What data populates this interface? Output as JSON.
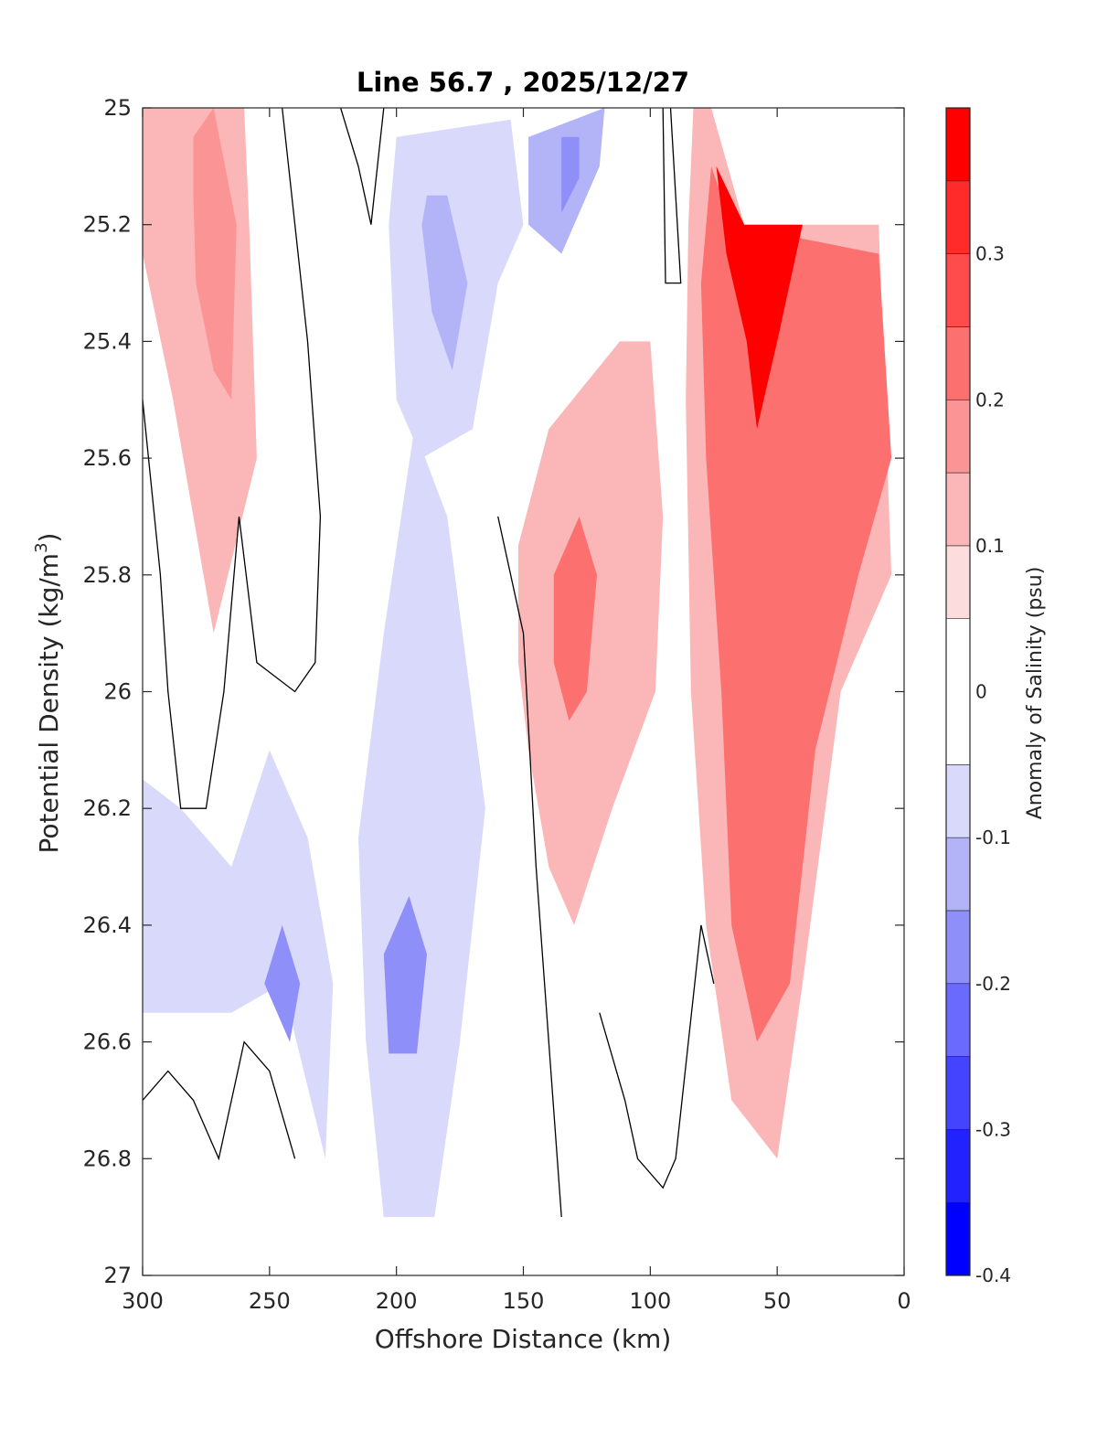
{
  "chart_data": {
    "type": "contourf",
    "title": "Line 56.7 , 2025/12/27",
    "xlabel": "Offshore Distance (km)",
    "ylabel_main": "Potential Density (kg/m",
    "ylabel_sup": "3",
    "ylabel_close": ")",
    "xlim": [
      300,
      0
    ],
    "ylim": [
      25,
      27
    ],
    "x_ticks": [
      300,
      250,
      200,
      150,
      100,
      50,
      0
    ],
    "x_tick_labels": [
      "300",
      "250",
      "200",
      "150",
      "100",
      "50",
      "0"
    ],
    "y_ticks": [
      25,
      25.2,
      25.4,
      25.6,
      25.8,
      26,
      26.2,
      26.4,
      26.6,
      26.8,
      27
    ],
    "y_tick_labels": [
      "25",
      "25.2",
      "25.4",
      "25.6",
      "25.8",
      "26",
      "26.2",
      "26.4",
      "26.6",
      "26.8",
      "27"
    ],
    "colorbar": {
      "label": "Anomaly of Salinity (psu)",
      "range": [
        -0.4,
        0.4
      ],
      "level_edges": [
        -0.4,
        -0.35,
        -0.3,
        -0.25,
        -0.2,
        -0.15,
        -0.1,
        -0.05,
        0.05,
        0.1,
        0.15,
        0.2,
        0.25,
        0.3,
        0.35,
        0.4
      ],
      "level_colors": [
        "#0000ff",
        "#2222ff",
        "#4444ff",
        "#6a6aff",
        "#8f8ffa",
        "#b3b3f8",
        "#d9d9fb",
        "#ffffff",
        "#fcdcdc",
        "#fbb7b7",
        "#fb9494",
        "#fd7070",
        "#fe4c4c",
        "#ff2a2a",
        "#ff0000"
      ],
      "tick_values": [
        0.3,
        0.2,
        0.1,
        0,
        -0.1,
        -0.2,
        -0.3,
        -0.4
      ],
      "tick_labels": [
        "0.3",
        "0.2",
        "0.1",
        "0",
        "-0.1",
        "-0.2",
        "-0.3",
        "-0.4"
      ]
    },
    "regions": [
      {
        "name": "positive-core-275km",
        "level": 0.1,
        "points": [
          [
            300,
            25
          ],
          [
            260,
            25
          ],
          [
            258,
            25.2
          ],
          [
            255,
            25.6
          ],
          [
            272,
            25.9
          ],
          [
            288,
            25.5
          ],
          [
            300,
            25.25
          ]
        ]
      },
      {
        "name": "positive-core-275km-inner",
        "level": 0.15,
        "points": [
          [
            280,
            25.05
          ],
          [
            272,
            25.0
          ],
          [
            263,
            25.2
          ],
          [
            265,
            25.5
          ],
          [
            272,
            25.45
          ],
          [
            279,
            25.3
          ],
          [
            280,
            25.15
          ]
        ]
      },
      {
        "name": "negative-upper-190km",
        "level": -0.1,
        "points": [
          [
            200,
            25.05
          ],
          [
            155,
            25.02
          ],
          [
            150,
            25.2
          ],
          [
            160,
            25.3
          ],
          [
            170,
            25.55
          ],
          [
            190,
            25.6
          ],
          [
            200,
            25.5
          ],
          [
            203,
            25.2
          ]
        ]
      },
      {
        "name": "negative-upper-190km-inner",
        "level": -0.15,
        "points": [
          [
            188,
            25.15
          ],
          [
            180,
            25.15
          ],
          [
            172,
            25.3
          ],
          [
            178,
            25.45
          ],
          [
            186,
            25.35
          ],
          [
            190,
            25.2
          ]
        ]
      },
      {
        "name": "negative-upper-135km",
        "level": -0.15,
        "points": [
          [
            148,
            25.05
          ],
          [
            118,
            25.0
          ],
          [
            120,
            25.1
          ],
          [
            135,
            25.25
          ],
          [
            148,
            25.2
          ]
        ]
      },
      {
        "name": "negative-upper-135km-inner",
        "level": -0.2,
        "points": [
          [
            135,
            25.05
          ],
          [
            128,
            25.05
          ],
          [
            128,
            25.12
          ],
          [
            135,
            25.18
          ]
        ]
      },
      {
        "name": "positive-coastal-band",
        "level": 0.1,
        "points": [
          [
            83,
            25
          ],
          [
            76,
            25
          ],
          [
            63,
            25.2
          ],
          [
            10,
            25.2
          ],
          [
            5,
            25.8
          ],
          [
            25,
            26.0
          ],
          [
            40,
            26.5
          ],
          [
            50,
            26.8
          ],
          [
            68,
            26.7
          ],
          [
            78,
            26.4
          ],
          [
            84,
            26.0
          ],
          [
            86,
            25.5
          ],
          [
            85,
            25.2
          ]
        ]
      },
      {
        "name": "positive-coastal-band-inner",
        "level": 0.2,
        "points": [
          [
            76,
            25.1
          ],
          [
            68,
            25.2
          ],
          [
            10,
            25.25
          ],
          [
            5,
            25.6
          ],
          [
            18,
            25.8
          ],
          [
            35,
            26.1
          ],
          [
            45,
            26.5
          ],
          [
            58,
            26.6
          ],
          [
            68,
            26.4
          ],
          [
            72,
            26.0
          ],
          [
            78,
            25.6
          ],
          [
            80,
            25.3
          ]
        ]
      },
      {
        "name": "positive-coastal-core",
        "level": 0.35,
        "points": [
          [
            74,
            25.1
          ],
          [
            63,
            25.2
          ],
          [
            40,
            25.2
          ],
          [
            50,
            25.4
          ],
          [
            58,
            25.55
          ],
          [
            62,
            25.4
          ],
          [
            70,
            25.25
          ]
        ]
      },
      {
        "name": "positive-mid-130km",
        "level": 0.1,
        "points": [
          [
            152,
            25.75
          ],
          [
            140,
            25.55
          ],
          [
            112,
            25.4
          ],
          [
            100,
            25.4
          ],
          [
            95,
            25.7
          ],
          [
            98,
            26.0
          ],
          [
            115,
            26.2
          ],
          [
            130,
            26.4
          ],
          [
            140,
            26.3
          ],
          [
            148,
            26.1
          ],
          [
            152,
            25.95
          ]
        ]
      },
      {
        "name": "positive-mid-130km-inner",
        "level": 0.2,
        "points": [
          [
            138,
            25.8
          ],
          [
            128,
            25.7
          ],
          [
            121,
            25.8
          ],
          [
            125,
            26.0
          ],
          [
            132,
            26.05
          ],
          [
            138,
            25.95
          ]
        ]
      },
      {
        "name": "negative-lower-200km",
        "level": -0.1,
        "points": [
          [
            215,
            26.25
          ],
          [
            205,
            25.9
          ],
          [
            193,
            25.55
          ],
          [
            180,
            25.7
          ],
          [
            165,
            26.2
          ],
          [
            175,
            26.6
          ],
          [
            185,
            26.9
          ],
          [
            205,
            26.9
          ],
          [
            212,
            26.6
          ]
        ]
      },
      {
        "name": "negative-lower-200km-inner",
        "level": -0.2,
        "points": [
          [
            205,
            26.45
          ],
          [
            195,
            26.35
          ],
          [
            188,
            26.45
          ],
          [
            192,
            26.62
          ],
          [
            203,
            26.62
          ]
        ]
      },
      {
        "name": "negative-lower-left",
        "level": -0.1,
        "points": [
          [
            300,
            26.15
          ],
          [
            285,
            26.2
          ],
          [
            265,
            26.3
          ],
          [
            250,
            26.1
          ],
          [
            235,
            26.25
          ],
          [
            225,
            26.5
          ],
          [
            228,
            26.8
          ],
          [
            245,
            26.5
          ],
          [
            265,
            26.55
          ],
          [
            285,
            26.55
          ],
          [
            300,
            26.55
          ]
        ]
      },
      {
        "name": "negative-lower-245km-inner",
        "level": -0.2,
        "points": [
          [
            252,
            26.5
          ],
          [
            245,
            26.4
          ],
          [
            238,
            26.5
          ],
          [
            242,
            26.6
          ]
        ]
      }
    ],
    "zero_contours": [
      {
        "name": "zero-contour-left",
        "points": [
          [
            300,
            25.5
          ],
          [
            293,
            25.8
          ],
          [
            290,
            26.0
          ],
          [
            285,
            26.2
          ],
          [
            275,
            26.2
          ],
          [
            268,
            26.0
          ],
          [
            262,
            25.7
          ],
          [
            255,
            25.95
          ],
          [
            240,
            26.0
          ],
          [
            232,
            25.95
          ],
          [
            230,
            25.7
          ],
          [
            235,
            25.4
          ],
          [
            240,
            25.2
          ],
          [
            245,
            25.0
          ]
        ]
      },
      {
        "name": "zero-contour-upper",
        "points": [
          [
            222,
            25.0
          ],
          [
            215,
            25.1
          ],
          [
            210,
            25.2
          ],
          [
            205,
            25.0
          ]
        ]
      },
      {
        "name": "zero-contour-mid",
        "points": [
          [
            160,
            25.7
          ],
          [
            150,
            25.9
          ],
          [
            145,
            26.3
          ],
          [
            140,
            26.6
          ],
          [
            135,
            26.9
          ]
        ]
      },
      {
        "name": "zero-contour-right-upper",
        "points": [
          [
            95,
            25.0
          ],
          [
            94,
            25.3
          ],
          [
            88,
            25.3
          ],
          [
            92,
            25.0
          ]
        ]
      },
      {
        "name": "zero-contour-lower-right",
        "points": [
          [
            120,
            26.55
          ],
          [
            110,
            26.7
          ],
          [
            105,
            26.8
          ],
          [
            95,
            26.85
          ],
          [
            90,
            26.8
          ],
          [
            85,
            26.6
          ],
          [
            80,
            26.4
          ],
          [
            75,
            26.5
          ]
        ]
      },
      {
        "name": "zero-contour-bottom-left",
        "points": [
          [
            300,
            26.7
          ],
          [
            290,
            26.65
          ],
          [
            280,
            26.7
          ],
          [
            270,
            26.8
          ],
          [
            260,
            26.6
          ],
          [
            250,
            26.65
          ],
          [
            240,
            26.8
          ]
        ]
      }
    ]
  }
}
